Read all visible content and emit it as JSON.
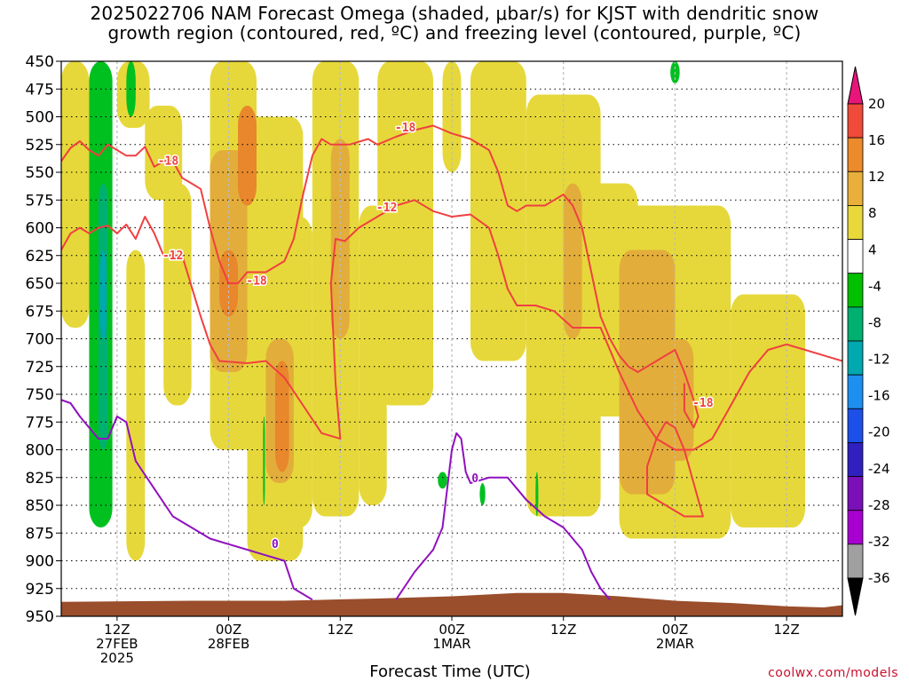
{
  "title_line1": "2025022706 NAM Forecast Omega (shaded, μbar/s) for KJST with dendritic snow",
  "title_line2": "growth region (contoured, red, ºC) and freezing level (contoured, purple, ºC)",
  "xlabel": "Forecast Time (UTC)",
  "credit": "coolwx.com/models",
  "chart_data": {
    "type": "heatmap",
    "title": "2025022706 NAM Forecast Omega (shaded, μbar/s) for KJST with dendritic snow growth region (contoured, red, ºC) and freezing level (contoured, purple, ºC)",
    "xlabel": "Forecast Time (UTC)",
    "ylabel": "",
    "y_axis": {
      "reversed": true,
      "ylim": [
        950,
        450
      ],
      "ticks": [
        450,
        475,
        500,
        525,
        550,
        575,
        600,
        625,
        650,
        675,
        700,
        725,
        750,
        775,
        800,
        825,
        850,
        875,
        900,
        925,
        950
      ]
    },
    "x_axis": {
      "range_hours": [
        6,
        90
      ],
      "ticks": [
        {
          "hour": 12,
          "lines": [
            "12Z",
            "27FEB",
            "2025"
          ]
        },
        {
          "hour": 24,
          "lines": [
            "00Z",
            "28FEB"
          ]
        },
        {
          "hour": 36,
          "lines": [
            "12Z"
          ]
        },
        {
          "hour": 48,
          "lines": [
            "00Z",
            "1MAR"
          ]
        },
        {
          "hour": 60,
          "lines": [
            "12Z"
          ]
        },
        {
          "hour": 72,
          "lines": [
            "00Z",
            "2MAR"
          ]
        },
        {
          "hour": 84,
          "lines": [
            "12Z"
          ]
        }
      ]
    },
    "grid": true,
    "colorbar": {
      "levels": [
        20,
        16,
        12,
        8,
        4,
        -4,
        -8,
        -12,
        -16,
        -20,
        -24,
        -28,
        -32,
        -36
      ],
      "colors": [
        "#e8157a",
        "#f04a3a",
        "#ec8a2c",
        "#e8b03a",
        "#e9d83a",
        "#ffffff",
        "#00c000",
        "#00b070",
        "#00a8b0",
        "#1d8ff0",
        "#1d50e8",
        "#3020c0",
        "#7a10b8",
        "#a800d0",
        "#a0a0a0",
        "#000000"
      ]
    },
    "colors": {
      "omega_4_8": "#e6d83a",
      "omega_8_12": "#e3ad3b",
      "omega_12_16": "#e8872b",
      "omega_neg_4_8": "#00c020",
      "omega_neg_8_12": "#00b070",
      "omega_neg_12_16": "#00a8b0",
      "dendritic_contour": "#f04040",
      "freezing_contour": "#9010c0",
      "terrain": "#9a4e2c"
    },
    "contours": [
      {
        "kind": "dendritic",
        "level": -12,
        "points": [
          [
            6,
            620
          ],
          [
            7,
            605
          ],
          [
            8,
            600
          ],
          [
            9,
            605
          ],
          [
            10,
            600
          ],
          [
            11,
            598
          ],
          [
            12,
            605
          ],
          [
            13,
            597
          ],
          [
            14,
            610
          ],
          [
            15,
            590
          ],
          [
            16,
            605
          ],
          [
            17,
            625
          ],
          [
            19,
            625
          ],
          [
            21,
            680
          ],
          [
            22,
            705
          ],
          [
            23,
            720
          ],
          [
            26,
            722
          ],
          [
            28,
            720
          ],
          [
            30,
            735
          ],
          [
            32,
            760
          ],
          [
            34,
            785
          ],
          [
            36,
            790
          ],
          [
            35.5,
            740
          ],
          [
            35,
            650
          ],
          [
            35.5,
            610
          ],
          [
            36.5,
            612
          ],
          [
            38,
            600
          ],
          [
            40,
            590
          ],
          [
            42,
            580
          ],
          [
            44,
            575
          ],
          [
            46,
            585
          ],
          [
            48,
            590
          ],
          [
            50,
            588
          ],
          [
            52,
            600
          ],
          [
            53,
            625
          ],
          [
            54,
            655
          ],
          [
            55,
            670
          ],
          [
            57,
            670
          ],
          [
            59,
            675
          ],
          [
            61,
            690
          ],
          [
            62,
            690
          ],
          [
            64,
            690
          ],
          [
            66,
            730
          ],
          [
            68,
            765
          ],
          [
            70,
            790
          ],
          [
            72,
            800
          ],
          [
            74,
            800
          ],
          [
            76,
            790
          ],
          [
            78,
            760
          ],
          [
            80,
            730
          ],
          [
            82,
            710
          ],
          [
            84,
            705
          ],
          [
            86,
            710
          ],
          [
            88,
            715
          ],
          [
            90,
            720
          ]
        ]
      },
      {
        "kind": "dendritic",
        "level": -18,
        "points": [
          [
            6,
            540
          ],
          [
            7,
            528
          ],
          [
            8,
            522
          ],
          [
            9,
            530
          ],
          [
            10,
            535
          ],
          [
            11,
            525
          ],
          [
            12,
            530
          ],
          [
            13,
            535
          ],
          [
            14,
            535
          ],
          [
            15,
            527
          ],
          [
            16,
            545
          ],
          [
            17,
            540
          ],
          [
            18,
            540
          ],
          [
            19,
            555
          ],
          [
            20,
            560
          ],
          [
            21,
            565
          ],
          [
            22,
            600
          ],
          [
            23,
            630
          ],
          [
            24,
            650
          ],
          [
            25,
            650
          ],
          [
            26,
            640
          ],
          [
            28,
            640
          ],
          [
            30,
            630
          ],
          [
            31,
            610
          ],
          [
            32,
            570
          ],
          [
            33,
            535
          ],
          [
            34,
            520
          ],
          [
            35,
            525
          ],
          [
            37,
            525
          ],
          [
            39,
            520
          ],
          [
            40,
            525
          ],
          [
            42,
            518
          ],
          [
            44,
            512
          ],
          [
            46,
            508
          ],
          [
            48,
            515
          ],
          [
            50,
            520
          ],
          [
            52,
            530
          ],
          [
            53,
            550
          ],
          [
            54,
            580
          ],
          [
            55,
            585
          ],
          [
            56,
            580
          ],
          [
            58,
            580
          ],
          [
            59,
            575
          ],
          [
            60,
            570
          ],
          [
            61,
            580
          ],
          [
            62,
            600
          ],
          [
            63,
            640
          ],
          [
            64,
            680
          ],
          [
            65,
            700
          ],
          [
            66,
            715
          ],
          [
            67,
            725
          ],
          [
            68,
            730
          ],
          [
            70,
            720
          ],
          [
            72,
            710
          ],
          [
            73,
            730
          ],
          [
            74,
            755
          ],
          [
            74.5,
            770
          ],
          [
            74,
            780
          ],
          [
            73,
            765
          ],
          [
            73,
            740
          ]
        ]
      },
      {
        "kind": "dendritic",
        "level": -18,
        "points": [
          [
            70,
            790
          ],
          [
            71,
            775
          ],
          [
            72,
            780
          ],
          [
            73,
            800
          ],
          [
            74,
            830
          ],
          [
            75,
            860
          ],
          [
            73,
            860
          ],
          [
            71,
            850
          ],
          [
            69,
            840
          ],
          [
            69,
            815
          ],
          [
            70,
            790
          ]
        ]
      },
      {
        "kind": "freezing",
        "level": 0,
        "points": [
          [
            6,
            755
          ],
          [
            7,
            758
          ],
          [
            8,
            770
          ],
          [
            9,
            780
          ],
          [
            10,
            790
          ],
          [
            11,
            790
          ],
          [
            12,
            770
          ],
          [
            13,
            775
          ],
          [
            14,
            810
          ],
          [
            16,
            835
          ],
          [
            18,
            860
          ],
          [
            20,
            870
          ],
          [
            22,
            880
          ],
          [
            24,
            885
          ],
          [
            26,
            890
          ],
          [
            28,
            895
          ],
          [
            30,
            900
          ],
          [
            31,
            925
          ],
          [
            32,
            930
          ],
          [
            33,
            935
          ]
        ]
      },
      {
        "kind": "freezing",
        "level": 0,
        "points": [
          [
            42,
            935
          ],
          [
            44,
            910
          ],
          [
            46,
            890
          ],
          [
            47,
            870
          ],
          [
            47.5,
            835
          ],
          [
            48,
            800
          ],
          [
            48.5,
            785
          ],
          [
            49,
            790
          ],
          [
            49.5,
            820
          ],
          [
            50,
            830
          ],
          [
            52,
            825
          ],
          [
            54,
            825
          ],
          [
            56,
            845
          ],
          [
            58,
            860
          ],
          [
            60,
            870
          ],
          [
            62,
            890
          ],
          [
            63,
            910
          ],
          [
            64,
            925
          ],
          [
            65,
            935
          ]
        ]
      }
    ],
    "contour_labels": [
      {
        "text": "-18",
        "x": 17.5,
        "y": 540,
        "color": "#f04040"
      },
      {
        "text": "-12",
        "x": 18,
        "y": 625,
        "color": "#f04040"
      },
      {
        "text": "-18",
        "x": 27,
        "y": 648,
        "color": "#f04040"
      },
      {
        "text": "-18",
        "x": 43,
        "y": 510,
        "color": "#f04040"
      },
      {
        "text": "-12",
        "x": 41,
        "y": 582,
        "color": "#f04040"
      },
      {
        "text": "-18",
        "x": 75,
        "y": 758,
        "color": "#f04040"
      },
      {
        "text": "0",
        "x": 29,
        "y": 885,
        "color": "#9010c0"
      },
      {
        "text": "0",
        "x": 50.5,
        "y": 826,
        "color": "#9010c0"
      }
    ],
    "omega_regions": [
      {
        "level": "4_8",
        "x": [
          6,
          9
        ],
        "y": [
          450,
          690
        ]
      },
      {
        "level": "4_8",
        "x": [
          12,
          15.5
        ],
        "y": [
          450,
          510
        ]
      },
      {
        "level": "4_8",
        "x": [
          15,
          19
        ],
        "y": [
          490,
          575
        ]
      },
      {
        "level": "4_8",
        "x": [
          13,
          15
        ],
        "y": [
          620,
          900
        ]
      },
      {
        "level": "4_8",
        "x": [
          17,
          20
        ],
        "y": [
          560,
          760
        ]
      },
      {
        "level": "4_8",
        "x": [
          22,
          27
        ],
        "y": [
          450,
          800
        ]
      },
      {
        "level": "4_8",
        "x": [
          26,
          32
        ],
        "y": [
          500,
          900
        ]
      },
      {
        "level": "4_8",
        "x": [
          30,
          33
        ],
        "y": [
          590,
          870
        ]
      },
      {
        "level": "4_8",
        "x": [
          33,
          38
        ],
        "y": [
          450,
          860
        ]
      },
      {
        "level": "4_8",
        "x": [
          38,
          41
        ],
        "y": [
          580,
          850
        ]
      },
      {
        "level": "4_8",
        "x": [
          40,
          46
        ],
        "y": [
          450,
          760
        ]
      },
      {
        "level": "4_8",
        "x": [
          47,
          49
        ],
        "y": [
          450,
          550
        ]
      },
      {
        "level": "4_8",
        "x": [
          50,
          56
        ],
        "y": [
          450,
          720
        ]
      },
      {
        "level": "4_8",
        "x": [
          56,
          64
        ],
        "y": [
          480,
          860
        ]
      },
      {
        "level": "4_8",
        "x": [
          60,
          68
        ],
        "y": [
          560,
          770
        ]
      },
      {
        "level": "4_8",
        "x": [
          66,
          78
        ],
        "y": [
          580,
          880
        ]
      },
      {
        "level": "4_8",
        "x": [
          78,
          86
        ],
        "y": [
          660,
          870
        ]
      },
      {
        "level": "8_12",
        "x": [
          22,
          26
        ],
        "y": [
          530,
          730
        ]
      },
      {
        "level": "8_12",
        "x": [
          28,
          31
        ],
        "y": [
          700,
          830
        ]
      },
      {
        "level": "8_12",
        "x": [
          35,
          37
        ],
        "y": [
          520,
          700
        ]
      },
      {
        "level": "8_12",
        "x": [
          60,
          62
        ],
        "y": [
          560,
          700
        ]
      },
      {
        "level": "8_12",
        "x": [
          66,
          72
        ],
        "y": [
          620,
          840
        ]
      },
      {
        "level": "8_12",
        "x": [
          70,
          74
        ],
        "y": [
          700,
          810
        ]
      },
      {
        "level": "12_16",
        "x": [
          25,
          27
        ],
        "y": [
          490,
          580
        ]
      },
      {
        "level": "12_16",
        "x": [
          23,
          25
        ],
        "y": [
          620,
          680
        ]
      },
      {
        "level": "12_16",
        "x": [
          29,
          30.5
        ],
        "y": [
          720,
          820
        ]
      },
      {
        "level": "neg_4_8",
        "x": [
          9,
          11.5
        ],
        "y": [
          450,
          870
        ]
      },
      {
        "level": "neg_4_8",
        "x": [
          13,
          14
        ],
        "y": [
          450,
          500
        ]
      },
      {
        "level": "neg_4_8",
        "x": [
          46.5,
          47.5
        ],
        "y": [
          820,
          835
        ]
      },
      {
        "level": "neg_4_8",
        "x": [
          51,
          51.6
        ],
        "y": [
          830,
          850
        ]
      },
      {
        "level": "neg_4_8",
        "x": [
          57,
          57.3
        ],
        "y": [
          820,
          860
        ]
      },
      {
        "level": "neg_4_8",
        "x": [
          27.7,
          27.9
        ],
        "y": [
          770,
          850
        ]
      },
      {
        "level": "neg_4_8",
        "x": [
          71.5,
          72.5
        ],
        "y": [
          450,
          470
        ]
      },
      {
        "level": "neg_8_12",
        "x": [
          10,
          11
        ],
        "y": [
          560,
          800
        ]
      },
      {
        "level": "neg_12_16",
        "x": [
          10.2,
          10.8
        ],
        "y": [
          620,
          700
        ]
      }
    ]
  }
}
